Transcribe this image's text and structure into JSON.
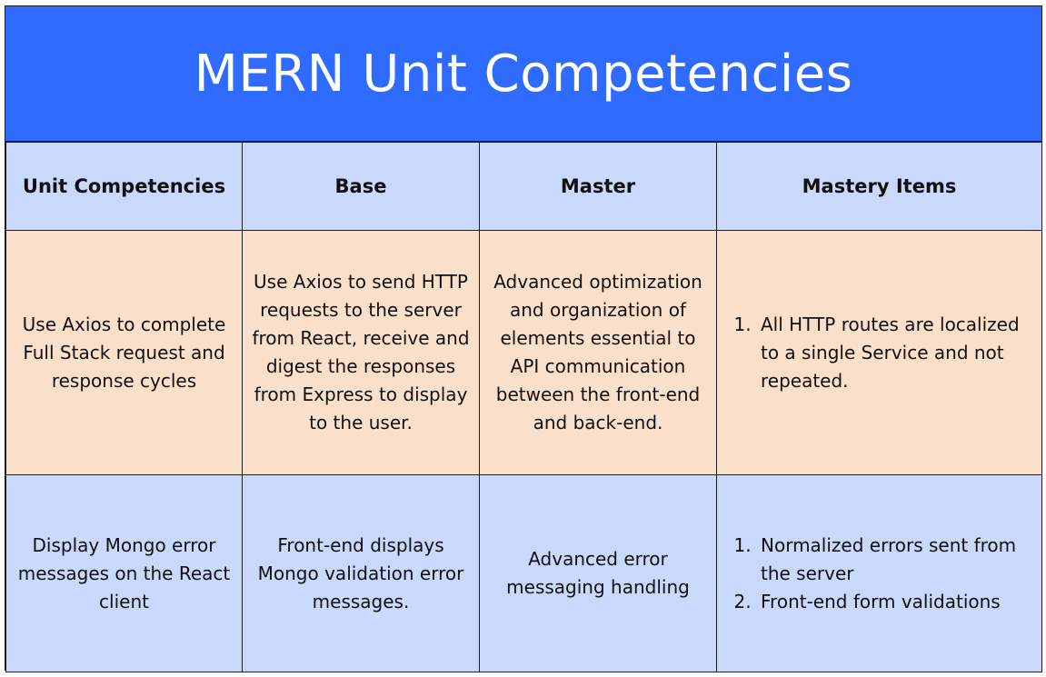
{
  "title": "MERN Unit Competencies",
  "headers": [
    "Unit Competencies",
    "Base",
    "Master",
    "Mastery Items"
  ],
  "rows": [
    {
      "competency": "Use Axios to complete Full Stack request and response cycles",
      "base": "Use Axios to send HTTP requests to the server from React, receive and digest the responses from Express to display to the user.",
      "master": "Advanced optimization and organization of elements essential to API communication between the front-end and back-end.",
      "mastery_items": [
        "All HTTP routes are localized to a single Service and not repeated."
      ]
    },
    {
      "competency": "Display Mongo error messages on the React client",
      "base": "Front-end displays Mongo validation error messages.",
      "master": "Advanced error messaging handling",
      "mastery_items": [
        "Normalized errors sent from the server",
        "Front-end form validations"
      ]
    }
  ],
  "colors": {
    "title_bg": "#2f6bff",
    "title_text": "#ffffff",
    "header_bg": "#c9d8fb",
    "row1_bg": "#fae0ca",
    "row2_bg": "#c9d8fb",
    "border": "#1f1f1f"
  }
}
